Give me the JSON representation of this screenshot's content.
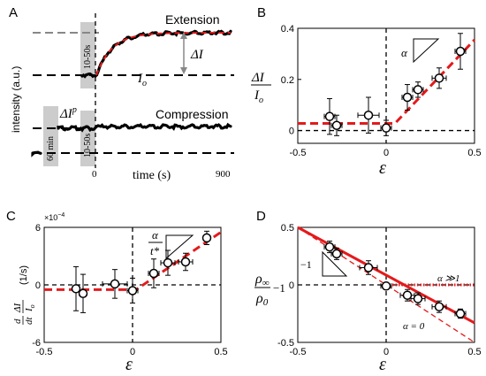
{
  "panel_labels": {
    "A": "A",
    "B": "B",
    "C": "C",
    "D": "D"
  },
  "panel_a": {
    "ylabel": "intensity (a.u.)",
    "xlabel": "time (s)",
    "x_end": "900",
    "x_zero": "0",
    "extension_label": "Extension",
    "compression_label": "Compression",
    "delta_i": "ΔI",
    "delta_ip_base": "ΔI",
    "delta_ip_sup": "p",
    "io_label": "I",
    "io_sub": "o",
    "shade_10_50_top": "10-50s",
    "shade_10_50_bottom": "10-50s",
    "shade_60min": "60 min",
    "colors": {
      "fit": "#e41a1c",
      "data": "#000000",
      "shade": "#cccccc",
      "grey_line": "#888888"
    }
  },
  "chart_data": [
    {
      "panel": "B",
      "type": "scatter",
      "xlabel": "ε",
      "ylabel_num": "ΔI",
      "ylabel_den": "I",
      "ylabel_den_sub": "o",
      "annotation": "α",
      "xlim": [
        -0.5,
        0.5
      ],
      "ylim": [
        -0.05,
        0.4
      ],
      "xticks": [
        "-0.5",
        "0",
        "0.5"
      ],
      "xtick_values": [
        -0.5,
        0,
        0.5
      ],
      "yticks": [
        "0",
        "0.2",
        "0.4"
      ],
      "ytick_values": [
        0,
        0.2,
        0.4
      ],
      "points": [
        {
          "x": -0.32,
          "y": 0.055,
          "xerr": 0.03,
          "yerr": 0.07
        },
        {
          "x": -0.28,
          "y": 0.02,
          "xerr": 0.03,
          "yerr": 0.04
        },
        {
          "x": -0.1,
          "y": 0.06,
          "xerr": 0.06,
          "yerr": 0.07
        },
        {
          "x": 0.0,
          "y": 0.01,
          "xerr": 0.03,
          "yerr": 0.03
        },
        {
          "x": 0.12,
          "y": 0.13,
          "xerr": 0.03,
          "yerr": 0.05
        },
        {
          "x": 0.18,
          "y": 0.16,
          "xerr": 0.03,
          "yerr": 0.03
        },
        {
          "x": 0.3,
          "y": 0.205,
          "xerr": 0.04,
          "yerr": 0.04
        },
        {
          "x": 0.42,
          "y": 0.31,
          "xerr": 0.03,
          "yerr": 0.07
        }
      ],
      "fit": [
        [
          -0.5,
          0.028
        ],
        [
          0.05,
          0.028
        ],
        [
          0.5,
          0.355
        ]
      ]
    },
    {
      "panel": "C",
      "type": "scatter",
      "xlabel": "ε",
      "ylabel_prefix": "d",
      "ylabel_dt": "dt",
      "ylabel_num": "ΔI",
      "ylabel_den": "I",
      "ylabel_den_sub": "o",
      "yunit": "(1/s)",
      "scale_label": "×10",
      "scale_exp": "−4",
      "annotation_num": "α",
      "annotation_den": "t*",
      "xlim": [
        -0.5,
        0.5
      ],
      "ylim": [
        -6,
        6
      ],
      "xticks": [
        "-0.5",
        "0",
        "0.5"
      ],
      "xtick_values": [
        -0.5,
        0,
        0.5
      ],
      "yticks": [
        "-6",
        "0",
        "6"
      ],
      "ytick_values": [
        -6,
        0,
        6
      ],
      "points": [
        {
          "x": -0.32,
          "y": -0.4,
          "xerr": 0.02,
          "yerr": 2.3
        },
        {
          "x": -0.28,
          "y": -0.9,
          "xerr": 0.02,
          "yerr": 2.0
        },
        {
          "x": -0.1,
          "y": 0.1,
          "xerr": 0.07,
          "yerr": 1.5
        },
        {
          "x": 0.0,
          "y": -0.6,
          "xerr": 0.03,
          "yerr": 1.3
        },
        {
          "x": 0.12,
          "y": 1.2,
          "xerr": 0.03,
          "yerr": 1.5
        },
        {
          "x": 0.2,
          "y": 2.3,
          "xerr": 0.04,
          "yerr": 1.3
        },
        {
          "x": 0.3,
          "y": 2.4,
          "xerr": 0.04,
          "yerr": 0.9
        },
        {
          "x": 0.42,
          "y": 4.9,
          "xerr": 0.02,
          "yerr": 0.7
        }
      ],
      "fit": [
        [
          -0.5,
          -0.5
        ],
        [
          0.02,
          -0.5
        ],
        [
          0.5,
          5.5
        ]
      ]
    },
    {
      "panel": "D",
      "type": "scatter",
      "xlabel": "ε",
      "ylabel_num": "ρ",
      "ylabel_num_sub": "∞",
      "ylabel_den": "ρ",
      "ylabel_den_sub": "0",
      "ylabel_suffix": "−1",
      "annotation_slope": "−1",
      "label_alpha_large": "α ≫1",
      "label_alpha_zero": "α = 0",
      "xlim": [
        -0.5,
        0.5
      ],
      "ylim": [
        -0.5,
        0.5
      ],
      "xticks": [
        "-0.5",
        "0",
        "0.5"
      ],
      "xtick_values": [
        -0.5,
        0,
        0.5
      ],
      "yticks": [
        "-0.5",
        "0",
        "0.5"
      ],
      "ytick_values": [
        -0.5,
        0,
        0.5
      ],
      "points": [
        {
          "x": -0.32,
          "y": 0.33,
          "xerr": 0.03,
          "yerr": 0.05
        },
        {
          "x": -0.28,
          "y": 0.27,
          "xerr": 0.03,
          "yerr": 0.05
        },
        {
          "x": -0.1,
          "y": 0.15,
          "xerr": 0.05,
          "yerr": 0.06
        },
        {
          "x": 0.0,
          "y": -0.01,
          "xerr": 0.03,
          "yerr": 0.03
        },
        {
          "x": 0.12,
          "y": -0.09,
          "xerr": 0.04,
          "yerr": 0.05
        },
        {
          "x": 0.18,
          "y": -0.12,
          "xerr": 0.04,
          "yerr": 0.05
        },
        {
          "x": 0.3,
          "y": -0.19,
          "xerr": 0.04,
          "yerr": 0.05
        },
        {
          "x": 0.42,
          "y": -0.25,
          "xerr": 0.03,
          "yerr": 0.04
        }
      ],
      "fit_solid": [
        [
          -0.5,
          0.5
        ],
        [
          0.5,
          -0.33
        ]
      ],
      "fit_dashed": [
        [
          -0.5,
          0.5
        ],
        [
          0.5,
          -0.5
        ]
      ],
      "fit_dotted": [
        [
          0.0,
          0.0
        ],
        [
          0.5,
          0.0
        ]
      ]
    }
  ]
}
